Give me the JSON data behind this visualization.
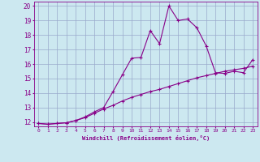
{
  "xlabel": "Windchill (Refroidissement éolien,°C)",
  "bg_color": "#cce8f0",
  "line_color": "#880088",
  "grid_color": "#99aacc",
  "x_data": [
    0,
    1,
    2,
    3,
    4,
    5,
    6,
    7,
    8,
    9,
    10,
    11,
    12,
    13,
    14,
    15,
    16,
    17,
    18,
    19,
    20,
    21,
    22,
    23
  ],
  "y1_data": [
    11.9,
    11.85,
    11.9,
    11.95,
    12.1,
    12.35,
    12.7,
    13.0,
    14.1,
    15.25,
    16.4,
    16.45,
    18.3,
    17.4,
    20.0,
    19.0,
    19.1,
    18.5,
    17.25,
    15.4,
    15.35,
    15.5,
    15.4,
    16.3
  ],
  "y2_data": [
    11.9,
    11.85,
    11.9,
    11.95,
    12.1,
    12.3,
    12.6,
    12.9,
    13.15,
    13.45,
    13.7,
    13.9,
    14.1,
    14.25,
    14.45,
    14.65,
    14.85,
    15.05,
    15.2,
    15.35,
    15.5,
    15.6,
    15.7,
    15.85
  ],
  "xlim": [
    -0.5,
    23.5
  ],
  "ylim": [
    11.7,
    20.3
  ],
  "xticks": [
    0,
    1,
    2,
    3,
    4,
    5,
    6,
    7,
    8,
    9,
    10,
    11,
    12,
    13,
    14,
    15,
    16,
    17,
    18,
    19,
    20,
    21,
    22,
    23
  ],
  "yticks": [
    12,
    13,
    14,
    15,
    16,
    17,
    18,
    19,
    20
  ]
}
